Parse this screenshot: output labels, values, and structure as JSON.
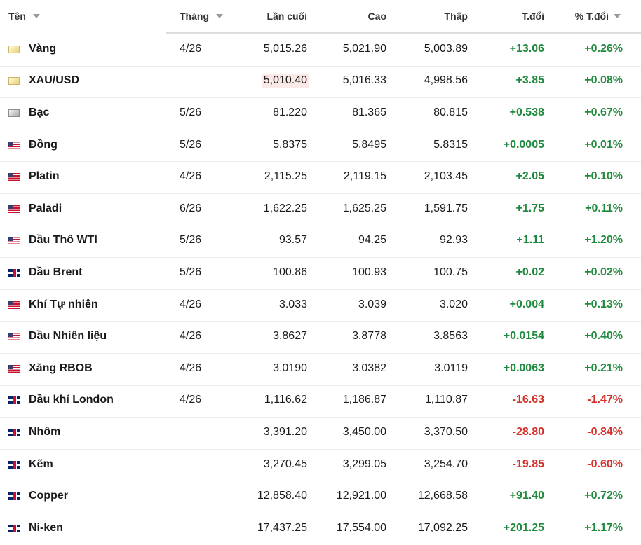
{
  "table": {
    "header": [
      "Tên",
      "Tháng",
      "Lần cuối",
      "Cao",
      "Thấp",
      "T.đổi",
      "% T.đổi"
    ],
    "rows": [
      [
        "Vàng",
        "4/26",
        "5,015.26",
        "5,021.90",
        "5,003.89",
        "+13.06",
        "+0.26%"
      ],
      [
        "XAU/USD",
        "",
        "5,010.40",
        "5,016.33",
        "4,998.56",
        "+3.85",
        "+0.08%"
      ],
      [
        "Bạc",
        "5/26",
        "81.220",
        "81.365",
        "80.815",
        "+0.538",
        "+0.67%"
      ],
      [
        "Đồng",
        "5/26",
        "5.8375",
        "5.8495",
        "5.8315",
        "+0.0005",
        "+0.01%"
      ],
      [
        "Platin",
        "4/26",
        "2,115.25",
        "2,119.15",
        "2,103.45",
        "+2.05",
        "+0.10%"
      ],
      [
        "Paladi",
        "6/26",
        "1,622.25",
        "1,625.25",
        "1,591.75",
        "+1.75",
        "+0.11%"
      ],
      [
        "Dầu Thô WTI",
        "5/26",
        "93.57",
        "94.25",
        "92.93",
        "+1.11",
        "+1.20%"
      ],
      [
        "Dầu Brent",
        "5/26",
        "100.86",
        "100.93",
        "100.75",
        "+0.02",
        "+0.02%"
      ],
      [
        "Khí Tự nhiên",
        "4/26",
        "3.033",
        "3.039",
        "3.020",
        "+0.004",
        "+0.13%"
      ],
      [
        "Dầu Nhiên liệu",
        "4/26",
        "3.8627",
        "3.8778",
        "3.8563",
        "+0.0154",
        "+0.40%"
      ],
      [
        "Xăng RBOB",
        "4/26",
        "3.0190",
        "3.0382",
        "3.0119",
        "+0.0063",
        "+0.21%"
      ],
      [
        "Dầu khí London",
        "4/26",
        "1,116.62",
        "1,186.87",
        "1,110.87",
        "-16.63",
        "-1.47%"
      ],
      [
        "Nhôm",
        "",
        "3,391.20",
        "3,450.00",
        "3,370.50",
        "-28.80",
        "-0.84%"
      ],
      [
        "Kẽm",
        "",
        "3,270.45",
        "3,299.05",
        "3,254.70",
        "-19.85",
        "-0.60%"
      ],
      [
        "Copper",
        "",
        "12,858.40",
        "12,921.00",
        "12,668.58",
        "+91.40",
        "+0.72%"
      ],
      [
        "Ni-ken",
        "",
        "17,437.25",
        "17,554.00",
        "17,092.25",
        "+201.25",
        "+1.17%"
      ]
    ]
  }
}
